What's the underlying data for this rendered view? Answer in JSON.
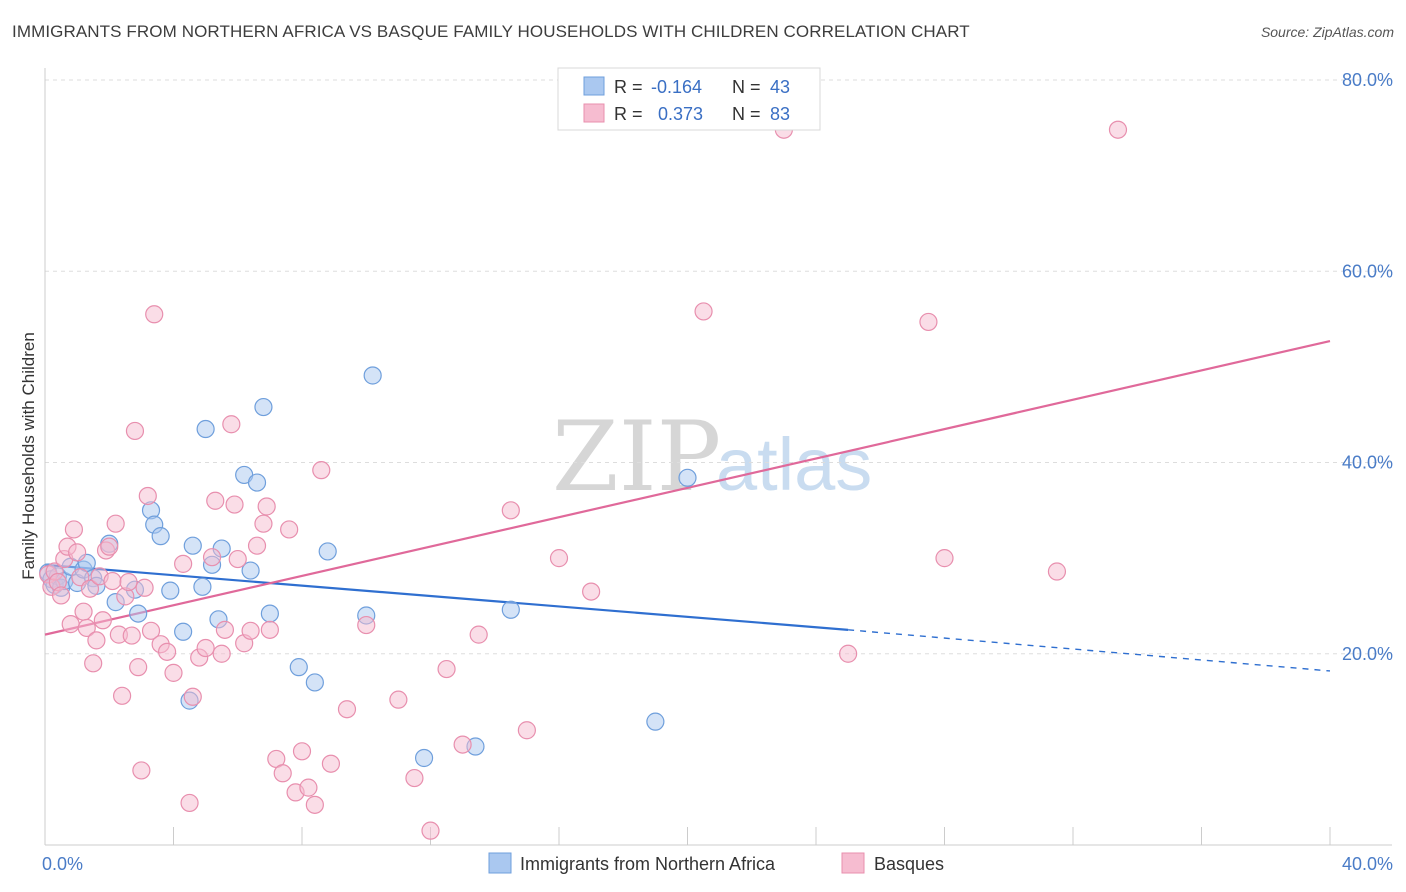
{
  "title": "IMMIGRANTS FROM NORTHERN AFRICA VS BASQUE FAMILY HOUSEHOLDS WITH CHILDREN CORRELATION CHART",
  "source": "Source: ZipAtlas.com",
  "watermark": {
    "zip": "ZIP",
    "atlas": "atlas"
  },
  "colors": {
    "blue_fill": "#aac8f0",
    "blue_stroke": "#6f9fdc",
    "blue_line": "#2f6fd0",
    "pink_fill": "#f6bcd0",
    "pink_stroke": "#e88fae",
    "pink_line": "#e0699a",
    "grid": "#dddddd",
    "axis_text": "#4a7cc7"
  },
  "legend": {
    "rows": [
      {
        "r_label": "R =",
        "r_value": "-0.164",
        "n_label": "N =",
        "n_value": "43",
        "color": "blue"
      },
      {
        "r_label": "R =",
        "r_value": "0.373",
        "n_label": "N =",
        "n_value": "83",
        "color": "pink"
      }
    ]
  },
  "chart_data": {
    "type": "scatter",
    "ylabel": "Family Households with Children",
    "xlim": [
      0,
      40
    ],
    "ylim": [
      0,
      80
    ],
    "x_tick_labels": [
      {
        "value": 0,
        "label": "0.0%"
      },
      {
        "value": 40,
        "label": "40.0%"
      }
    ],
    "y_tick_labels": [
      {
        "value": 20,
        "label": "20.0%"
      },
      {
        "value": 40,
        "label": "40.0%"
      },
      {
        "value": 60,
        "label": "60.0%"
      },
      {
        "value": 80,
        "label": "80.0%"
      }
    ],
    "grid": true,
    "legend_position": "top-center",
    "series": [
      {
        "name": "Immigrants from Northern Africa",
        "color": "blue",
        "trend": {
          "x0": 0,
          "y0": 29.3,
          "x1": 25,
          "y1": 22.5,
          "dash_to_x": 40,
          "dash_to_y": 18.2
        },
        "points": [
          [
            0.1,
            28.5
          ],
          [
            0.2,
            27.8
          ],
          [
            0.3,
            27.2
          ],
          [
            0.4,
            28.1
          ],
          [
            0.5,
            26.9
          ],
          [
            0.6,
            27.6
          ],
          [
            0.8,
            29.1
          ],
          [
            1.0,
            27.4
          ],
          [
            1.2,
            28.8
          ],
          [
            1.3,
            29.5
          ],
          [
            1.5,
            27.9
          ],
          [
            1.6,
            27.1
          ],
          [
            2.0,
            31.5
          ],
          [
            2.2,
            25.4
          ],
          [
            2.8,
            26.7
          ],
          [
            2.9,
            24.2
          ],
          [
            3.3,
            35.0
          ],
          [
            3.4,
            33.5
          ],
          [
            3.6,
            32.3
          ],
          [
            3.9,
            26.6
          ],
          [
            4.3,
            22.3
          ],
          [
            4.5,
            15.1
          ],
          [
            4.6,
            31.3
          ],
          [
            4.9,
            27.0
          ],
          [
            5.0,
            43.5
          ],
          [
            5.2,
            29.3
          ],
          [
            5.4,
            23.6
          ],
          [
            5.5,
            31.0
          ],
          [
            6.2,
            38.7
          ],
          [
            6.4,
            28.7
          ],
          [
            6.6,
            37.9
          ],
          [
            6.8,
            45.8
          ],
          [
            7.0,
            24.2
          ],
          [
            7.9,
            18.6
          ],
          [
            8.4,
            17.0
          ],
          [
            8.8,
            30.7
          ],
          [
            10.0,
            24.0
          ],
          [
            10.2,
            49.1
          ],
          [
            11.8,
            9.1
          ],
          [
            13.4,
            10.3
          ],
          [
            14.5,
            24.6
          ],
          [
            19.0,
            12.9
          ],
          [
            20.0,
            38.4
          ]
        ]
      },
      {
        "name": "Basques",
        "color": "pink",
        "trend": {
          "x0": 0,
          "y0": 22.0,
          "x1": 40,
          "y1": 52.7
        },
        "points": [
          [
            0.1,
            28.3
          ],
          [
            0.2,
            27.0
          ],
          [
            0.3,
            28.6
          ],
          [
            0.4,
            27.5
          ],
          [
            0.5,
            26.1
          ],
          [
            0.6,
            29.9
          ],
          [
            0.7,
            31.2
          ],
          [
            0.8,
            23.1
          ],
          [
            0.9,
            33.0
          ],
          [
            1.0,
            30.6
          ],
          [
            1.1,
            28.0
          ],
          [
            1.2,
            24.4
          ],
          [
            1.3,
            22.7
          ],
          [
            1.4,
            26.8
          ],
          [
            1.5,
            19.0
          ],
          [
            1.6,
            21.4
          ],
          [
            1.7,
            28.1
          ],
          [
            1.8,
            23.5
          ],
          [
            1.9,
            30.8
          ],
          [
            2.0,
            31.2
          ],
          [
            2.1,
            27.6
          ],
          [
            2.2,
            33.6
          ],
          [
            2.3,
            22.0
          ],
          [
            2.4,
            15.6
          ],
          [
            2.5,
            26.0
          ],
          [
            2.6,
            27.5
          ],
          [
            2.7,
            21.9
          ],
          [
            2.8,
            43.3
          ],
          [
            2.9,
            18.6
          ],
          [
            3.0,
            7.8
          ],
          [
            3.1,
            26.9
          ],
          [
            3.2,
            36.5
          ],
          [
            3.3,
            22.4
          ],
          [
            3.4,
            55.5
          ],
          [
            3.6,
            21.0
          ],
          [
            3.8,
            20.2
          ],
          [
            4.0,
            18.0
          ],
          [
            4.3,
            29.4
          ],
          [
            4.5,
            4.4
          ],
          [
            4.6,
            15.5
          ],
          [
            4.8,
            19.6
          ],
          [
            5.0,
            20.6
          ],
          [
            5.2,
            30.1
          ],
          [
            5.3,
            36.0
          ],
          [
            5.5,
            20.0
          ],
          [
            5.6,
            22.5
          ],
          [
            5.8,
            44.0
          ],
          [
            5.9,
            35.6
          ],
          [
            6.0,
            29.9
          ],
          [
            6.2,
            21.1
          ],
          [
            6.4,
            22.4
          ],
          [
            6.6,
            31.3
          ],
          [
            6.8,
            33.6
          ],
          [
            6.9,
            35.4
          ],
          [
            7.0,
            22.5
          ],
          [
            7.2,
            9.0
          ],
          [
            7.4,
            7.5
          ],
          [
            7.6,
            33.0
          ],
          [
            7.8,
            5.5
          ],
          [
            8.0,
            9.8
          ],
          [
            8.2,
            6.0
          ],
          [
            8.4,
            4.2
          ],
          [
            8.6,
            39.2
          ],
          [
            8.9,
            8.5
          ],
          [
            9.4,
            14.2
          ],
          [
            10.0,
            23.0
          ],
          [
            11.0,
            15.2
          ],
          [
            11.5,
            7.0
          ],
          [
            12.0,
            1.5
          ],
          [
            12.5,
            18.4
          ],
          [
            13.0,
            10.5
          ],
          [
            13.5,
            22.0
          ],
          [
            14.5,
            35.0
          ],
          [
            15.0,
            12.0
          ],
          [
            16.0,
            30.0
          ],
          [
            17.0,
            26.5
          ],
          [
            20.5,
            55.8
          ],
          [
            23.0,
            74.8
          ],
          [
            25.0,
            20.0
          ],
          [
            27.5,
            54.7
          ],
          [
            28.0,
            30.0
          ],
          [
            31.5,
            28.6
          ],
          [
            33.4,
            74.8
          ]
        ]
      }
    ]
  }
}
